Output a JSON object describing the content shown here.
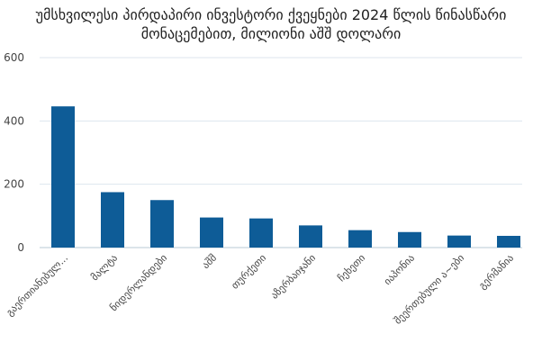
{
  "chart_data": {
    "type": "bar",
    "title": "უმსხვილესი პირდაპირი ინვესტორი ქვეყნები 2024 წლის წინასწარი მონაცემებით, მილიონი აშშ დოლარი",
    "xlabel": "",
    "ylabel": "",
    "categories": [
      "გაერთიანებულ...",
      "მალტა",
      "ნიდერლანდები",
      "აშშ",
      "თურქეთი",
      "აზერბაიჯანი",
      "ჩეხეთი",
      "იაპონია",
      "შეერთებული ა~ები",
      "გერმანია"
    ],
    "values": [
      446,
      175,
      150,
      95,
      92,
      70,
      55,
      49,
      38,
      37
    ],
    "yticks": [
      0,
      200,
      400,
      600
    ],
    "ylim": [
      0,
      600
    ],
    "grid": true,
    "legend": "none",
    "bar_color": "#0e5c97",
    "grid_color": "#dde6ee",
    "axis_color": "#b8c8d6"
  }
}
